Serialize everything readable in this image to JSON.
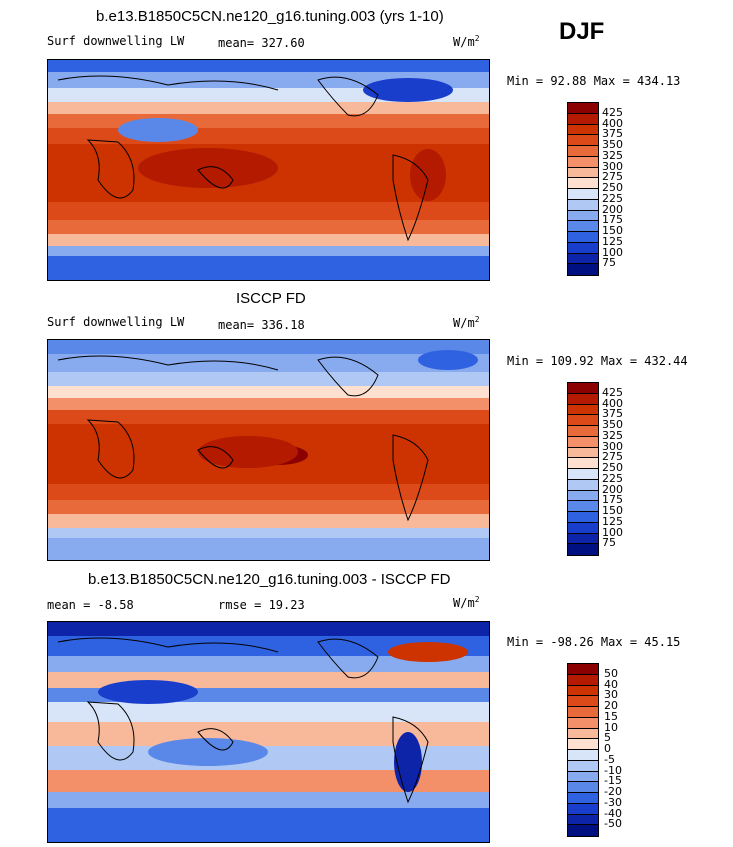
{
  "season": "DJF",
  "panels": [
    {
      "title": "b.e13.B1850C5CN.ne120_g16.tuning.003 (yrs 1-10)",
      "variable": "Surf downwelling LW",
      "stat1": "mean= 327.60",
      "stat2": "",
      "units": "W/m",
      "units_exp": "2",
      "minmax": "Min =  92.88 Max = 434.13"
    },
    {
      "title": "ISCCP FD",
      "variable": "Surf downwelling LW",
      "stat1": "mean= 336.18",
      "stat2": "",
      "units": "W/m",
      "units_exp": "2",
      "minmax": "Min = 109.92 Max = 432.44"
    },
    {
      "title": "b.e13.B1850C5CN.ne120_g16.tuning.003 - ISCCP FD",
      "variable": "",
      "stat1": "mean =  -8.58",
      "stat2": "rmse =  19.23",
      "units": "W/m",
      "units_exp": "2",
      "minmax": "Min = -98.26 Max =  45.15"
    }
  ],
  "colorbar_abs": {
    "labels": [
      "425",
      "400",
      "375",
      "350",
      "325",
      "300",
      "275",
      "250",
      "225",
      "200",
      "175",
      "150",
      "125",
      "100",
      "75"
    ],
    "colors": [
      "#8b0000",
      "#b31a00",
      "#cc3300",
      "#dd4a1a",
      "#e86a3a",
      "#f3906a",
      "#f8b89a",
      "#fde0d0",
      "#d8e4f8",
      "#b0c8f4",
      "#88aaee",
      "#5a88e8",
      "#2f62e0",
      "#1a3ecc",
      "#0d24a8",
      "#001080"
    ]
  },
  "colorbar_diff": {
    "labels": [
      "50",
      "40",
      "30",
      "20",
      "15",
      "10",
      "5",
      "0",
      "-5",
      "-10",
      "-15",
      "-20",
      "-30",
      "-40",
      "-50"
    ],
    "colors": [
      "#8b0000",
      "#b31a00",
      "#cc3300",
      "#dd4a1a",
      "#e86a3a",
      "#f3906a",
      "#f8b89a",
      "#fde0d0",
      "#d8e4f8",
      "#b0c8f4",
      "#88aaee",
      "#5a88e8",
      "#2f62e0",
      "#1a3ecc",
      "#0d24a8",
      "#001080"
    ]
  },
  "chart_data": [
    {
      "type": "heatmap",
      "title": "b.e13.B1850C5CN.ne120_g16.tuning.003 (yrs 1-10)",
      "variable": "Surf downwelling LW",
      "units": "W/m2",
      "mean": 327.6,
      "min": 92.88,
      "max": 434.13,
      "levels": [
        75,
        100,
        125,
        150,
        175,
        200,
        225,
        250,
        275,
        300,
        325,
        350,
        375,
        400,
        425
      ]
    },
    {
      "type": "heatmap",
      "title": "ISCCP FD",
      "variable": "Surf downwelling LW",
      "units": "W/m2",
      "mean": 336.18,
      "min": 109.92,
      "max": 432.44,
      "levels": [
        75,
        100,
        125,
        150,
        175,
        200,
        225,
        250,
        275,
        300,
        325,
        350,
        375,
        400,
        425
      ]
    },
    {
      "type": "heatmap",
      "title": "b.e13.B1850C5CN.ne120_g16.tuning.003 - ISCCP FD",
      "units": "W/m2",
      "mean": -8.58,
      "rmse": 19.23,
      "min": -98.26,
      "max": 45.15,
      "levels": [
        -50,
        -40,
        -30,
        -20,
        -15,
        -10,
        -5,
        0,
        5,
        10,
        15,
        20,
        30,
        40,
        50
      ]
    }
  ]
}
